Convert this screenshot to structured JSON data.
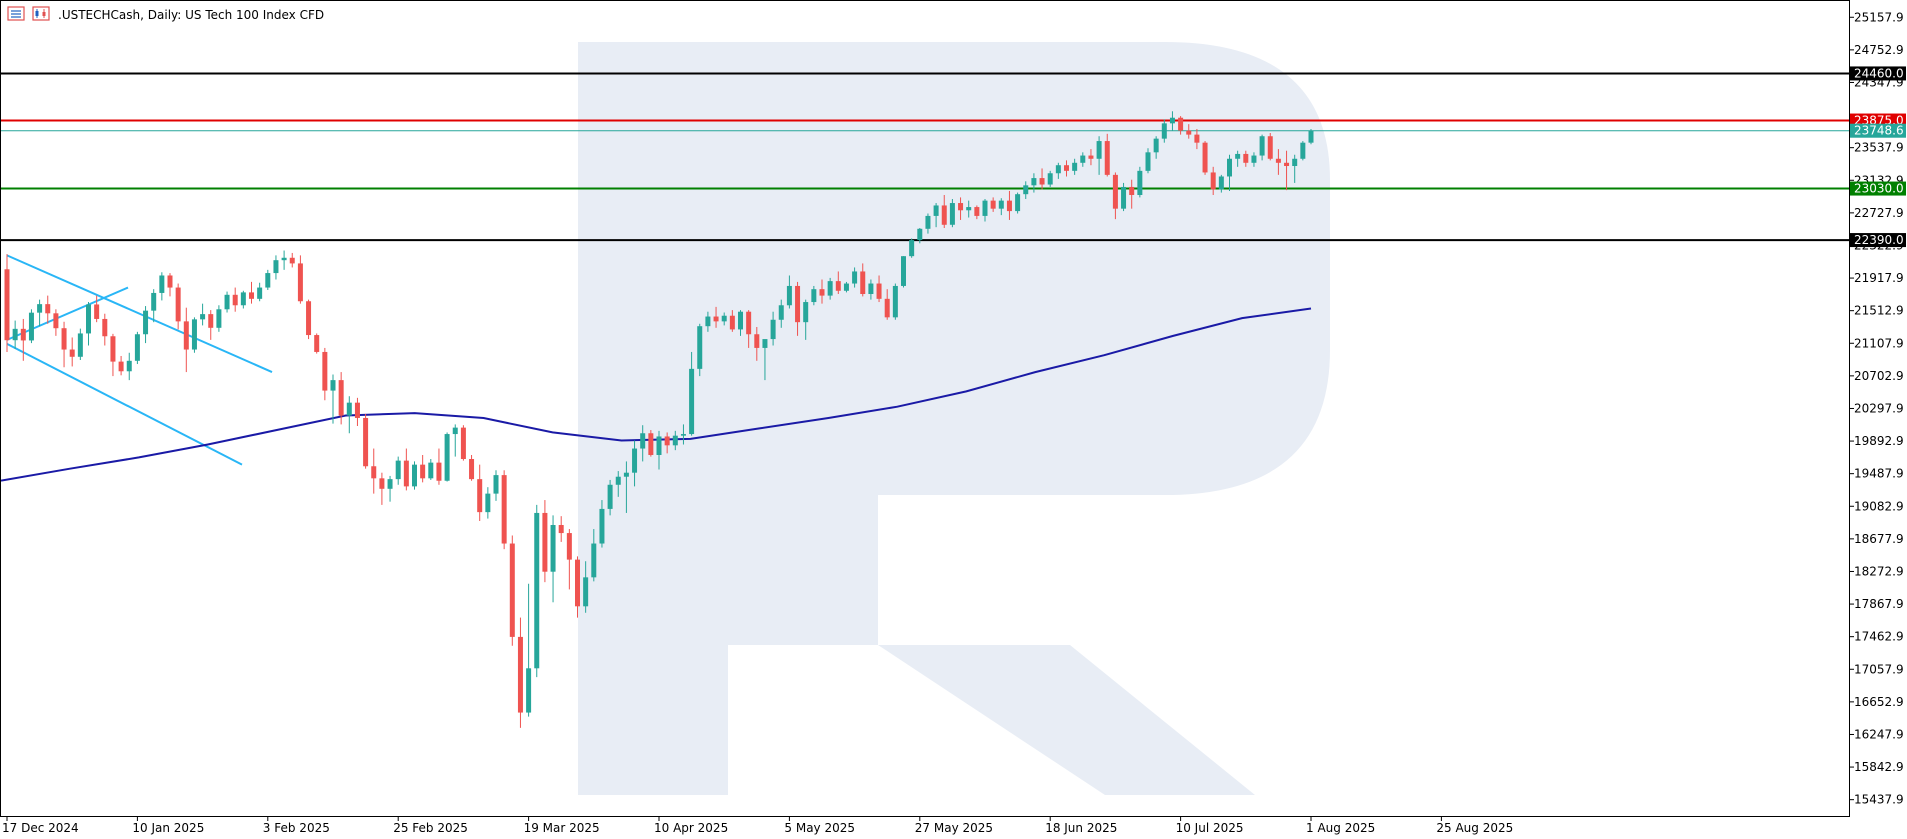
{
  "header": {
    "symbol": ".USTECHCash",
    "timeframe": "Daily",
    "description": "US Tech 100 Index CFD",
    "separator": ", ",
    "colon": ":  "
  },
  "colors": {
    "bull": "#26a69a",
    "bear": "#ef5350",
    "ma": "#1a1aa6",
    "channel": "#29b6f6",
    "resistance_major": "#000000",
    "resistance": "#e00000",
    "support": "#008000",
    "current": "#26a69a",
    "watermark": "#e8edf5"
  },
  "chart_data": {
    "type": "candlestick",
    "title": ".USTECHCash, Daily:  US Tech 100 Index CFD",
    "y_range": [
      15235,
      25360
    ],
    "y_ticks": [
      "25157.9",
      "24752.9",
      "24347.9",
      "23537.9",
      "23132.9",
      "22727.9",
      "22322.9",
      "21917.9",
      "21512.9",
      "21107.9",
      "20702.9",
      "20297.9",
      "19892.9",
      "19487.9",
      "19082.9",
      "18677.9",
      "18272.9",
      "17867.9",
      "17462.9",
      "17057.9",
      "16652.9",
      "16247.9",
      "15842.9",
      "15437.9"
    ],
    "x_labels": [
      "17 Dec 2024",
      "10 Jan 2025",
      "3 Feb 2025",
      "25 Feb 2025",
      "19 Mar 2025",
      "10 Apr 2025",
      "5 May 2025",
      "27 May 2025",
      "18 Jun 2025",
      "10 Jul 2025",
      "1 Aug 2025",
      "25 Aug 2025"
    ],
    "levels": [
      {
        "value": 24460.0,
        "label": "24460.0",
        "kind": "resistance_major"
      },
      {
        "value": 23875.0,
        "label": "23875.0",
        "kind": "resistance"
      },
      {
        "value": 23748.6,
        "label": "23748.6",
        "kind": "current"
      },
      {
        "value": 23030.0,
        "label": "23030.0",
        "kind": "support"
      },
      {
        "value": 22390.0,
        "label": "22390.0",
        "kind": "resistance_major"
      }
    ],
    "channel_lines": [
      {
        "from": [
          "17 Dec 2024",
          22200
        ],
        "to": [
          "3 Feb 2025",
          20750
        ]
      },
      {
        "from": [
          "17 Dec 2024",
          21100
        ],
        "to": [
          "3 Feb 2025",
          19600
        ]
      },
      {
        "from": [
          "17 Dec 2024",
          21150
        ],
        "to": [
          "10 Jan 2025",
          21800
        ]
      }
    ],
    "moving_average": {
      "name": "",
      "points": [
        19400,
        19550,
        19690,
        19850,
        20030,
        20210,
        20240,
        20180,
        20000,
        19900,
        19920,
        20050,
        20180,
        20320,
        20510,
        20750,
        20960,
        21200,
        21420,
        21540
      ]
    },
    "candles": [
      [
        22027,
        22215,
        21000,
        21146
      ],
      [
        21146,
        21390,
        21038,
        21287
      ],
      [
        21287,
        21410,
        20890,
        21143
      ],
      [
        21143,
        21530,
        21110,
        21488
      ],
      [
        21488,
        21650,
        21320,
        21594
      ],
      [
        21594,
        21700,
        21350,
        21480
      ],
      [
        21480,
        21530,
        21200,
        21295
      ],
      [
        21295,
        21375,
        20810,
        21030
      ],
      [
        21030,
        21180,
        20820,
        20940
      ],
      [
        20940,
        21290,
        20900,
        21230
      ],
      [
        21230,
        21620,
        21080,
        21590
      ],
      [
        21590,
        21700,
        21370,
        21410
      ],
      [
        21410,
        21475,
        21080,
        21195
      ],
      [
        21195,
        21225,
        20700,
        20880
      ],
      [
        20880,
        20950,
        20710,
        20760
      ],
      [
        20760,
        20990,
        20650,
        20890
      ],
      [
        20890,
        21250,
        20850,
        21220
      ],
      [
        21220,
        21570,
        21110,
        21513
      ],
      [
        21513,
        21780,
        21370,
        21733
      ],
      [
        21733,
        21990,
        21640,
        21950
      ],
      [
        21950,
        21980,
        21690,
        21800
      ],
      [
        21800,
        21850,
        21280,
        21380
      ],
      [
        21380,
        21550,
        20750,
        21030
      ],
      [
        21030,
        21430,
        20990,
        21405
      ],
      [
        21405,
        21600,
        21330,
        21470
      ],
      [
        21470,
        21520,
        21150,
        21300
      ],
      [
        21300,
        21580,
        21250,
        21530
      ],
      [
        21530,
        21750,
        21490,
        21710
      ],
      [
        21710,
        21800,
        21500,
        21580
      ],
      [
        21580,
        21760,
        21540,
        21740
      ],
      [
        21740,
        21870,
        21600,
        21660
      ],
      [
        21660,
        21860,
        21630,
        21800
      ],
      [
        21800,
        22020,
        21770,
        21980
      ],
      [
        21980,
        22200,
        21900,
        22140
      ],
      [
        22140,
        22260,
        22020,
        22170
      ],
      [
        22170,
        22230,
        22050,
        22100
      ],
      [
        22100,
        22200,
        21600,
        21630
      ],
      [
        21630,
        21650,
        21160,
        21210
      ],
      [
        21210,
        21230,
        20980,
        21000
      ],
      [
        21000,
        21050,
        20400,
        20520
      ],
      [
        20520,
        20720,
        20110,
        20650
      ],
      [
        20650,
        20750,
        20100,
        20210
      ],
      [
        20210,
        20450,
        19990,
        20370
      ],
      [
        20370,
        20430,
        20080,
        20180
      ],
      [
        20180,
        20230,
        19550,
        19580
      ],
      [
        19580,
        19800,
        19240,
        19430
      ],
      [
        19430,
        19500,
        19100,
        19300
      ],
      [
        19300,
        19460,
        19140,
        19420
      ],
      [
        19420,
        19700,
        19350,
        19650
      ],
      [
        19650,
        19800,
        19280,
        19330
      ],
      [
        19330,
        19640,
        19290,
        19600
      ],
      [
        19600,
        19720,
        19380,
        19430
      ],
      [
        19430,
        19670,
        19410,
        19625
      ],
      [
        19625,
        19800,
        19350,
        19400
      ],
      [
        19400,
        20000,
        19390,
        19980
      ],
      [
        19980,
        20100,
        19700,
        20060
      ],
      [
        20060,
        20090,
        19650,
        19670
      ],
      [
        19670,
        19720,
        19400,
        19420
      ],
      [
        19420,
        19600,
        18900,
        19010
      ],
      [
        19010,
        19320,
        18930,
        19240
      ],
      [
        19240,
        19530,
        19150,
        19470
      ],
      [
        19470,
        19530,
        18550,
        18620
      ],
      [
        18620,
        18720,
        17350,
        17460
      ],
      [
        17460,
        17700,
        16330,
        16520
      ],
      [
        16520,
        18120,
        16470,
        17070
      ],
      [
        17070,
        19100,
        16960,
        19000
      ],
      [
        19000,
        19160,
        18140,
        18270
      ],
      [
        18270,
        18970,
        17890,
        18850
      ],
      [
        18850,
        18960,
        18640,
        18750
      ],
      [
        18750,
        18800,
        18050,
        18420
      ],
      [
        18420,
        18460,
        17700,
        17840
      ],
      [
        17840,
        18400,
        17760,
        18200
      ],
      [
        18200,
        18800,
        18150,
        18620
      ],
      [
        18620,
        19160,
        18570,
        19050
      ],
      [
        19050,
        19410,
        18970,
        19350
      ],
      [
        19350,
        19520,
        19200,
        19450
      ],
      [
        19450,
        19640,
        19000,
        19500
      ],
      [
        19500,
        19900,
        19330,
        19800
      ],
      [
        19800,
        20090,
        19640,
        19990
      ],
      [
        19990,
        20030,
        19700,
        19720
      ],
      [
        19720,
        20020,
        19540,
        19950
      ],
      [
        19950,
        20000,
        19740,
        19840
      ],
      [
        19840,
        20020,
        19780,
        19960
      ],
      [
        19960,
        20100,
        19850,
        19980
      ],
      [
        19980,
        21000,
        19960,
        20790
      ],
      [
        20790,
        21350,
        20700,
        21320
      ],
      [
        21320,
        21500,
        21250,
        21440
      ],
      [
        21440,
        21560,
        21300,
        21380
      ],
      [
        21380,
        21490,
        21330,
        21450
      ],
      [
        21450,
        21520,
        21250,
        21280
      ],
      [
        21280,
        21520,
        21200,
        21500
      ],
      [
        21500,
        21520,
        21050,
        21220
      ],
      [
        21220,
        21310,
        20890,
        21050
      ],
      [
        21050,
        21140,
        20650,
        21160
      ],
      [
        21160,
        21500,
        21080,
        21400
      ],
      [
        21400,
        21650,
        21300,
        21580
      ],
      [
        21580,
        21950,
        21540,
        21820
      ],
      [
        21820,
        21870,
        21200,
        21370
      ],
      [
        21370,
        21650,
        21150,
        21620
      ],
      [
        21620,
        21820,
        21580,
        21780
      ],
      [
        21780,
        21900,
        21600,
        21700
      ],
      [
        21700,
        21920,
        21650,
        21880
      ],
      [
        21880,
        22000,
        21720,
        21760
      ],
      [
        21760,
        21870,
        21740,
        21850
      ],
      [
        21850,
        22050,
        21800,
        22000
      ],
      [
        22000,
        22100,
        21690,
        21720
      ],
      [
        21720,
        21900,
        21650,
        21850
      ],
      [
        21850,
        21950,
        21620,
        21660
      ],
      [
        21660,
        21780,
        21400,
        21430
      ],
      [
        21430,
        21850,
        21400,
        21820
      ],
      [
        21820,
        22190,
        21800,
        22190
      ],
      [
        22190,
        22410,
        22170,
        22390
      ],
      [
        22390,
        22540,
        22350,
        22530
      ],
      [
        22530,
        22720,
        22470,
        22690
      ],
      [
        22690,
        22850,
        22550,
        22820
      ],
      [
        22820,
        22950,
        22540,
        22580
      ],
      [
        22580,
        22900,
        22550,
        22850
      ],
      [
        22850,
        22920,
        22640,
        22760
      ],
      [
        22760,
        22880,
        22670,
        22800
      ],
      [
        22800,
        22820,
        22650,
        22690
      ],
      [
        22690,
        22900,
        22620,
        22880
      ],
      [
        22880,
        22920,
        22740,
        22780
      ],
      [
        22780,
        22910,
        22700,
        22880
      ],
      [
        22880,
        23000,
        22640,
        22750
      ],
      [
        22750,
        22980,
        22720,
        22960
      ],
      [
        22960,
        23120,
        22900,
        23070
      ],
      [
        23070,
        23220,
        22980,
        23160
      ],
      [
        23160,
        23280,
        23020,
        23080
      ],
      [
        23080,
        23250,
        23050,
        23220
      ],
      [
        23220,
        23350,
        23150,
        23320
      ],
      [
        23320,
        23380,
        23180,
        23250
      ],
      [
        23250,
        23400,
        23200,
        23350
      ],
      [
        23350,
        23480,
        23300,
        23440
      ],
      [
        23440,
        23520,
        23320,
        23400
      ],
      [
        23400,
        23680,
        23200,
        23620
      ],
      [
        23620,
        23710,
        23180,
        23200
      ],
      [
        23200,
        23230,
        22650,
        22780
      ],
      [
        22780,
        23100,
        22750,
        23050
      ],
      [
        23050,
        23140,
        22780,
        22950
      ],
      [
        22950,
        23300,
        22920,
        23250
      ],
      [
        23250,
        23530,
        23220,
        23480
      ],
      [
        23480,
        23680,
        23400,
        23650
      ],
      [
        23650,
        23890,
        23600,
        23840
      ],
      [
        23840,
        23990,
        23750,
        23910
      ],
      [
        23910,
        23930,
        23700,
        23750
      ],
      [
        23750,
        23830,
        23650,
        23700
      ],
      [
        23700,
        23770,
        23520,
        23600
      ],
      [
        23600,
        23620,
        23200,
        23230
      ],
      [
        23230,
        23300,
        22950,
        23020
      ],
      [
        23020,
        23200,
        22980,
        23180
      ],
      [
        23180,
        23450,
        23000,
        23400
      ],
      [
        23400,
        23500,
        23300,
        23460
      ],
      [
        23460,
        23500,
        23300,
        23350
      ],
      [
        23350,
        23480,
        23300,
        23440
      ],
      [
        23440,
        23700,
        23380,
        23680
      ],
      [
        23680,
        23720,
        23380,
        23400
      ],
      [
        23400,
        23520,
        23200,
        23350
      ],
      [
        23350,
        23500,
        23010,
        23310
      ],
      [
        23310,
        23450,
        23100,
        23400
      ],
      [
        23400,
        23620,
        23380,
        23600
      ],
      [
        23600,
        23770,
        23580,
        23748.6
      ]
    ]
  }
}
